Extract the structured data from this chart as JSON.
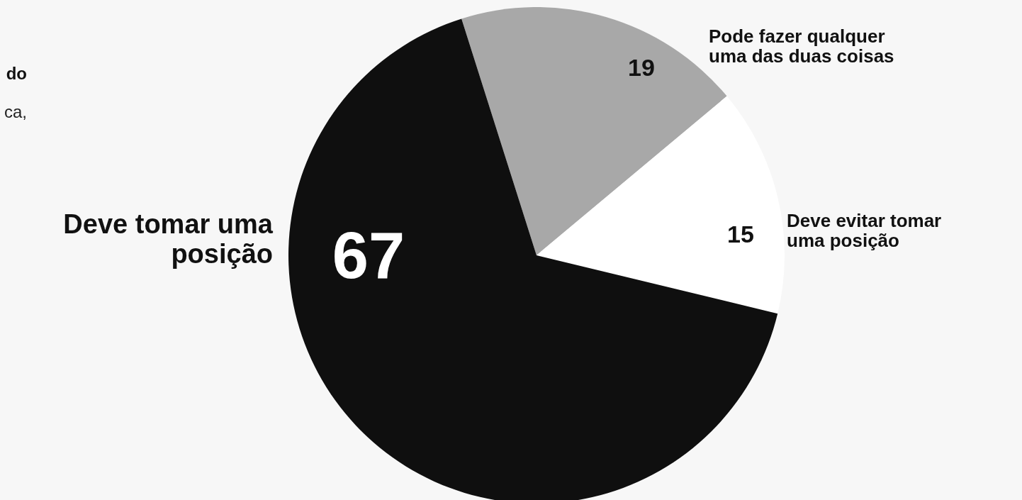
{
  "chart_data": {
    "type": "pie",
    "title": "do",
    "subtitle": "ca,",
    "categories": [
      "Pode fazer qualquer uma das duas coisas",
      "Deve evitar tomar uma posição",
      "Deve tomar uma posição"
    ],
    "values": [
      19,
      15,
      67
    ],
    "colors": [
      "#a8a8a8",
      "#ffffff",
      "#0f0f0f"
    ],
    "data_labels": true
  }
}
